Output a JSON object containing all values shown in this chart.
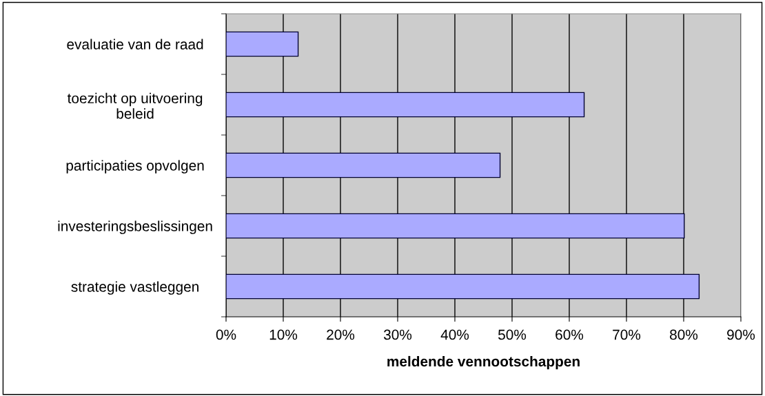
{
  "chart_data": {
    "type": "bar",
    "orientation": "horizontal",
    "xlabel": "meldende vennootschappen",
    "categories": [
      "evaluatie van de raad",
      "toezicht op uitvoering\nbeleid",
      "participaties opvolgen",
      "investeringsbeslissingen",
      "strategie vastleggen"
    ],
    "values": [
      12.6,
      62.6,
      47.9,
      80.1,
      82.7
    ],
    "color": "#aaaaff",
    "xlim": [
      0,
      90
    ],
    "xticks": [
      {
        "value": 0,
        "label": "0%"
      },
      {
        "value": 10,
        "label": "10%"
      },
      {
        "value": 20,
        "label": "20%"
      },
      {
        "value": 30,
        "label": "30%"
      },
      {
        "value": 40,
        "label": "40%"
      },
      {
        "value": 50,
        "label": "50%"
      },
      {
        "value": 60,
        "label": "60%"
      },
      {
        "value": 70,
        "label": "70%"
      },
      {
        "value": 80,
        "label": "80%"
      },
      {
        "value": 90,
        "label": "90%"
      }
    ],
    "grid": "x",
    "legend": false
  }
}
